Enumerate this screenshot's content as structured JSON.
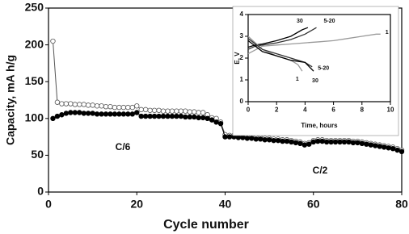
{
  "chart_data": [
    {
      "type": "line",
      "xlabel": "Cycle number",
      "ylabel": "Capacity, mA h/g",
      "annotations": [
        "C/6",
        "C/2"
      ],
      "x": [
        1,
        2,
        3,
        4,
        5,
        6,
        7,
        8,
        9,
        10,
        11,
        12,
        13,
        14,
        15,
        16,
        17,
        18,
        19,
        20,
        21,
        22,
        23,
        24,
        25,
        26,
        27,
        28,
        29,
        30,
        31,
        32,
        33,
        34,
        35,
        36,
        37,
        38,
        39,
        40,
        41,
        42,
        43,
        44,
        45,
        46,
        47,
        48,
        49,
        50,
        51,
        52,
        53,
        54,
        55,
        56,
        57,
        58,
        59,
        60,
        61,
        62,
        63,
        64,
        65,
        66,
        67,
        68,
        69,
        70,
        71,
        72,
        73,
        74,
        75,
        76,
        77,
        78,
        79,
        80
      ],
      "series": [
        {
          "marker": "open",
          "color": "#555555",
          "values": [
            205,
            122,
            120,
            120,
            120,
            119,
            119,
            119,
            118,
            118,
            117,
            117,
            116,
            116,
            115,
            115,
            115,
            115,
            115,
            117,
            112,
            112,
            111,
            111,
            111,
            110,
            110,
            110,
            110,
            110,
            110,
            109,
            109,
            108,
            108,
            105,
            101,
            100,
            95,
            78,
            77,
            77,
            76,
            76,
            75,
            75,
            74,
            74,
            73,
            73,
            72,
            72,
            71,
            71,
            70,
            69,
            68,
            66,
            67,
            70,
            71,
            71,
            70,
            70,
            70,
            70,
            70,
            70,
            69,
            69,
            68,
            67,
            66,
            65,
            64,
            63,
            62,
            61,
            59,
            57
          ]
        },
        {
          "marker": "filled",
          "color": "#000000",
          "values": [
            100,
            103,
            105,
            107,
            108,
            108,
            108,
            107,
            107,
            107,
            106,
            106,
            106,
            106,
            106,
            106,
            106,
            106,
            106,
            108,
            103,
            103,
            103,
            103,
            103,
            103,
            103,
            103,
            103,
            103,
            102,
            102,
            102,
            101,
            101,
            100,
            98,
            95,
            93,
            75,
            75,
            75,
            74,
            74,
            73,
            73,
            72,
            72,
            71,
            71,
            70,
            70,
            69,
            69,
            68,
            67,
            66,
            64,
            65,
            68,
            69,
            69,
            68,
            68,
            68,
            68,
            68,
            68,
            67,
            67,
            66,
            65,
            64,
            63,
            62,
            61,
            60,
            59,
            57,
            55
          ]
        }
      ],
      "xlim": [
        0,
        80
      ],
      "xticks": [
        0,
        20,
        40,
        60,
        80
      ],
      "ylim": [
        0,
        250
      ],
      "yticks": [
        0,
        50,
        100,
        150,
        200,
        250
      ]
    },
    {
      "type": "line",
      "xlabel": "Time, hours",
      "ylabel": "E, V",
      "series": [
        {
          "label": "1",
          "color": "#999999",
          "x": [
            0,
            1,
            2,
            3,
            4,
            5,
            6,
            7,
            8,
            9,
            9.3
          ],
          "values": [
            2.2,
            2.55,
            2.6,
            2.65,
            2.7,
            2.75,
            2.8,
            2.9,
            3.0,
            3.1,
            3.1
          ]
        },
        {
          "label": "5-20",
          "color": "#333333",
          "x": [
            0,
            0.5,
            1,
            2,
            3,
            4,
            4.8
          ],
          "values": [
            2.4,
            2.55,
            2.6,
            2.7,
            2.85,
            3.1,
            3.4
          ]
        },
        {
          "label": "30",
          "color": "#000000",
          "x": [
            0,
            0.5,
            1,
            2,
            3,
            3.8,
            4.2
          ],
          "values": [
            2.5,
            2.6,
            2.65,
            2.8,
            3.0,
            3.3,
            3.4
          ]
        },
        {
          "label": "1",
          "color": "#999999",
          "x": [
            0,
            0.5,
            1,
            2,
            3,
            3.5,
            3.8
          ],
          "values": [
            3.0,
            2.7,
            2.4,
            2.1,
            1.9,
            1.7,
            1.4
          ]
        },
        {
          "label": "5-20",
          "color": "#333333",
          "x": [
            0,
            1,
            2,
            3,
            4,
            4.5
          ],
          "values": [
            2.9,
            2.4,
            2.2,
            2.0,
            1.8,
            1.6
          ]
        },
        {
          "label": "30",
          "color": "#000000",
          "x": [
            0,
            1,
            2,
            3,
            4,
            4.6
          ],
          "values": [
            2.8,
            2.3,
            2.1,
            1.9,
            1.8,
            1.4
          ]
        }
      ],
      "xlim": [
        0,
        10
      ],
      "xticks": [
        0,
        2,
        4,
        6,
        8,
        10
      ],
      "ylim": [
        0,
        4
      ],
      "yticks": [
        0,
        1,
        2,
        3,
        4
      ]
    }
  ]
}
